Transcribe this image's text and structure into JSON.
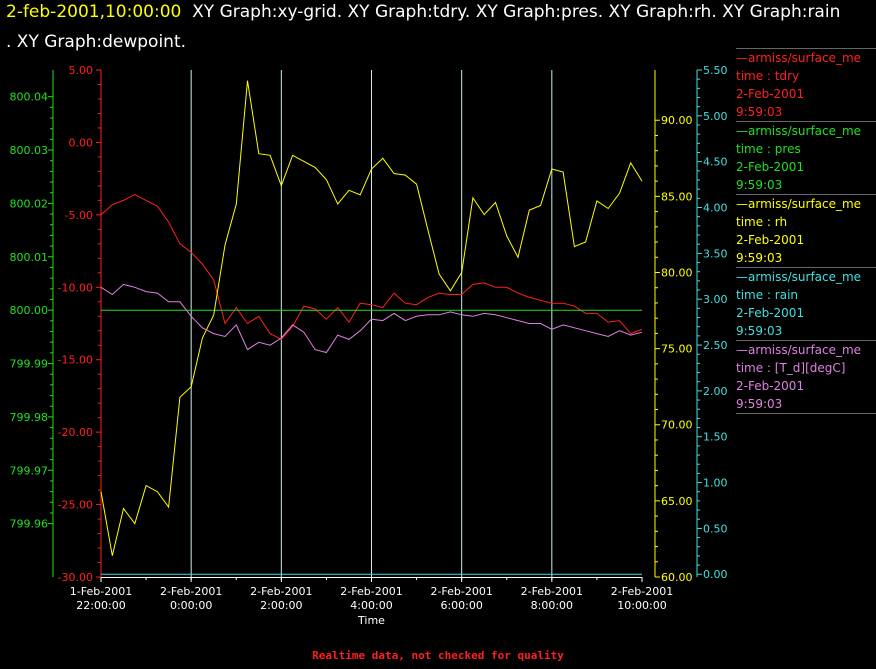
{
  "header": {
    "date": "2-feb-2001,10:00:00",
    "line1": "XY Graph:xy-grid.  XY Graph:tdry.  XY Graph:pres.  XY Graph:rh.  XY Graph:rain",
    "line2": ".  XY Graph:dewpoint."
  },
  "footer": "Realtime data, not checked for quality",
  "legend": [
    {
      "name": "armiss/surface_me",
      "line1": "time : tdry",
      "line2": "2-Feb-2001",
      "line3": "9:59:03",
      "color": "#ff2020"
    },
    {
      "name": "armiss/surface_me",
      "line1": "time : pres",
      "line2": "2-Feb-2001",
      "line3": "9:59:03",
      "color": "#20e020"
    },
    {
      "name": "armiss/surface_me",
      "line1": "time : rh",
      "line2": "2-Feb-2001",
      "line3": "9:59:03",
      "color": "#ffff00"
    },
    {
      "name": "armiss/surface_me",
      "line1": "time : rain",
      "line2": "2-Feb-2001",
      "line3": "9:59:03",
      "color": "#40e0e0"
    },
    {
      "name": "armiss/surface_me",
      "line1": "time : [T_d][degC]",
      "line2": "2-Feb-2001",
      "line3": "9:59:03",
      "color": "#e080e0"
    }
  ],
  "chart_data": {
    "type": "line",
    "xlabel": "Time",
    "x_ticks": [
      [
        "1-Feb-2001",
        "22:00:00"
      ],
      [
        "2-Feb-2001",
        "0:00:00"
      ],
      [
        "2-Feb-2001",
        "2:00:00"
      ],
      [
        "2-Feb-2001",
        "4:00:00"
      ],
      [
        "2-Feb-2001",
        "6:00:00"
      ],
      [
        "2-Feb-2001",
        "8:00:00"
      ],
      [
        "2-Feb-2001",
        "10:00:00"
      ]
    ],
    "x_range_hours": [
      22,
      34
    ],
    "axes": [
      {
        "id": "tdry",
        "color": "#ff2020",
        "range": [
          -30,
          5
        ],
        "ticks": [
          "5.00",
          "0.00",
          "-5.00",
          "-10.00",
          "-15.00",
          "-20.00",
          "-25.00",
          "-30.00"
        ]
      },
      {
        "id": "pres",
        "color": "#20e020",
        "range": [
          799.95,
          800.045
        ],
        "ticks": [
          "800.04",
          "800.03",
          "800.02",
          "800.01",
          "800.00",
          "799.99",
          "799.98",
          "799.97",
          "799.96"
        ]
      },
      {
        "id": "rh",
        "color": "#ffff00",
        "range": [
          60,
          93.3
        ],
        "ticks": [
          "90.00",
          "85.00",
          "80.00",
          "75.00",
          "70.00",
          "65.00",
          "60.00"
        ]
      },
      {
        "id": "rain",
        "color": "#40e0e0",
        "range": [
          -0.03,
          5.5
        ],
        "ticks": [
          "5.50",
          "5.00",
          "4.50",
          "4.00",
          "3.50",
          "3.00",
          "2.50",
          "2.00",
          "1.50",
          "1.00",
          "0.50",
          "0.00"
        ]
      }
    ],
    "grid": true,
    "series": [
      {
        "name": "tdry",
        "axis": "tdry",
        "color": "#ff2020",
        "x": [
          22.0,
          22.25,
          22.5,
          22.75,
          23.0,
          23.25,
          23.5,
          23.75,
          24.0,
          24.25,
          24.5,
          24.75,
          25.0,
          25.25,
          25.5,
          25.75,
          26.0,
          26.25,
          26.5,
          26.75,
          27.0,
          27.25,
          27.5,
          27.75,
          28.0,
          28.25,
          28.5,
          28.75,
          29.0,
          29.25,
          29.5,
          29.75,
          30.0,
          30.25,
          30.5,
          30.75,
          31.0,
          31.25,
          31.5,
          31.75,
          32.0,
          32.25,
          32.5,
          32.75,
          33.0,
          33.25,
          33.5,
          33.75,
          34.0
        ],
        "y": [
          -5.0,
          -4.3,
          -4.0,
          -3.6,
          -4.0,
          -4.4,
          -5.5,
          -7.0,
          -7.6,
          -8.4,
          -9.5,
          -12.5,
          -11.4,
          -12.5,
          -12.0,
          -13.2,
          -13.6,
          -12.7,
          -11.3,
          -11.5,
          -12.2,
          -11.4,
          -12.4,
          -11.1,
          -11.2,
          -11.4,
          -10.4,
          -11.1,
          -11.2,
          -10.7,
          -10.4,
          -10.5,
          -10.5,
          -9.8,
          -9.7,
          -10.0,
          -10.0,
          -10.4,
          -10.7,
          -10.9,
          -11.1,
          -11.1,
          -11.3,
          -11.8,
          -11.8,
          -12.4,
          -12.3,
          -13.2,
          -12.9
        ]
      },
      {
        "name": "pres",
        "axis": "pres",
        "color": "#20e020",
        "x": [
          22,
          34
        ],
        "y": [
          800.0,
          800.0
        ]
      },
      {
        "name": "rh",
        "axis": "rh",
        "color": "#ffff00",
        "x": [
          22.0,
          22.25,
          22.5,
          22.75,
          23.0,
          23.25,
          23.5,
          23.75,
          24.0,
          24.25,
          24.5,
          24.75,
          25.0,
          25.25,
          25.5,
          25.75,
          26.0,
          26.25,
          26.5,
          26.75,
          27.0,
          27.25,
          27.5,
          27.75,
          28.0,
          28.25,
          28.5,
          28.75,
          29.0,
          29.25,
          29.5,
          29.75,
          30.0,
          30.25,
          30.5,
          30.75,
          31.0,
          31.25,
          31.5,
          31.75,
          32.0,
          32.25,
          32.5,
          32.75,
          33.0,
          33.25,
          33.5,
          33.75,
          34.0
        ],
        "y": [
          65.6,
          61.4,
          64.5,
          63.5,
          66.0,
          65.6,
          64.6,
          71.8,
          72.5,
          75.7,
          77.2,
          81.8,
          84.5,
          92.6,
          87.8,
          87.7,
          85.7,
          87.7,
          87.3,
          86.9,
          86.1,
          84.5,
          85.4,
          85.1,
          86.8,
          87.5,
          86.5,
          86.4,
          85.8,
          82.8,
          79.9,
          78.8,
          80.0,
          84.9,
          83.8,
          84.6,
          82.4,
          81.0,
          84.1,
          84.4,
          86.8,
          86.6,
          81.7,
          82.0,
          84.7,
          84.2,
          85.2,
          87.2,
          86.0
        ]
      },
      {
        "name": "rain",
        "axis": "rain",
        "color": "#40e0e0",
        "x": [
          22,
          34
        ],
        "y": [
          0.0,
          0.0
        ]
      },
      {
        "name": "[T_d][degC]",
        "axis": "tdry",
        "color": "#e080e0",
        "x": [
          22.0,
          22.25,
          22.5,
          22.75,
          23.0,
          23.25,
          23.5,
          23.75,
          24.0,
          24.25,
          24.5,
          24.75,
          25.0,
          25.25,
          25.5,
          25.75,
          26.0,
          26.25,
          26.5,
          26.75,
          27.0,
          27.25,
          27.5,
          27.75,
          28.0,
          28.25,
          28.5,
          28.75,
          29.0,
          29.25,
          29.5,
          29.75,
          30.0,
          30.25,
          30.5,
          30.75,
          31.0,
          31.25,
          31.5,
          31.75,
          32.0,
          32.25,
          32.5,
          32.75,
          33.0,
          33.25,
          33.5,
          33.75,
          34.0
        ],
        "y": [
          -10.0,
          -10.5,
          -9.8,
          -10.0,
          -10.3,
          -10.4,
          -11.0,
          -11.0,
          -12.0,
          -12.8,
          -13.2,
          -13.4,
          -12.6,
          -14.3,
          -13.8,
          -14.0,
          -13.5,
          -12.6,
          -13.1,
          -14.3,
          -14.5,
          -13.3,
          -13.6,
          -13.0,
          -12.2,
          -12.3,
          -11.8,
          -12.3,
          -12.0,
          -11.9,
          -11.9,
          -11.7,
          -11.9,
          -12.0,
          -11.8,
          -11.9,
          -12.1,
          -12.3,
          -12.5,
          -12.5,
          -12.9,
          -12.6,
          -12.8,
          -13.0,
          -13.2,
          -13.4,
          -13.0,
          -13.3,
          -13.1
        ]
      }
    ]
  }
}
